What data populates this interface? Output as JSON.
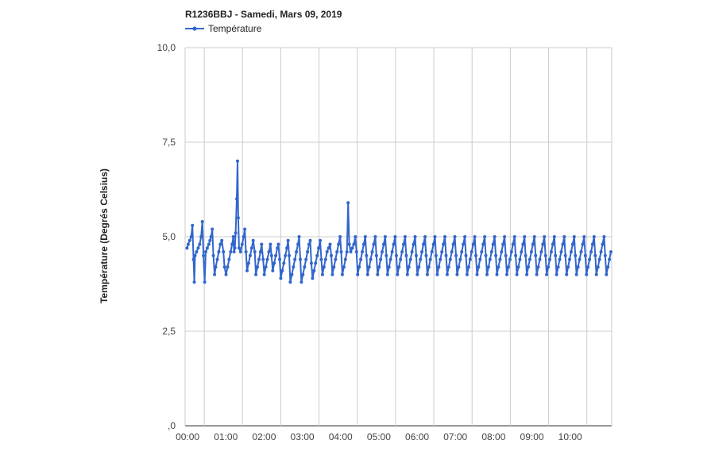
{
  "chart_data": {
    "type": "line",
    "title": "R1236BBJ - Samedi, Mars 09, 2019",
    "xlabel": "",
    "ylabel": "Température (Degrés Celsius)",
    "ylim": [
      0,
      10
    ],
    "y_ticks": [
      ",0",
      "2,5",
      "5,0",
      "7,5",
      "10,0"
    ],
    "y_tick_values": [
      0,
      2.5,
      5,
      7.5,
      10
    ],
    "x_ticks": [
      "00:00",
      "01:00",
      "02:00",
      "03:00",
      "04:00",
      "05:00",
      "06:00",
      "07:00",
      "08:00",
      "09:00",
      "10:00"
    ],
    "x_tick_values": [
      0,
      1,
      2,
      3,
      4,
      5,
      6,
      7,
      8,
      9,
      10
    ],
    "xlim_hours": [
      -0.5,
      10.65
    ],
    "grid": true,
    "legend_position": "top-left",
    "series": [
      {
        "name": "Température",
        "color": "#3366cc",
        "points": [
          [
            -0.45,
            4.7
          ],
          [
            -0.42,
            4.8
          ],
          [
            -0.38,
            4.9
          ],
          [
            -0.34,
            5.0
          ],
          [
            -0.31,
            5.3
          ],
          [
            -0.28,
            4.4
          ],
          [
            -0.26,
            3.8
          ],
          [
            -0.24,
            4.5
          ],
          [
            -0.2,
            4.6
          ],
          [
            -0.16,
            4.7
          ],
          [
            -0.12,
            4.8
          ],
          [
            -0.08,
            5.0
          ],
          [
            -0.05,
            5.4
          ],
          [
            -0.02,
            4.5
          ],
          [
            0.01,
            3.8
          ],
          [
            0.04,
            4.6
          ],
          [
            0.08,
            4.7
          ],
          [
            0.12,
            4.8
          ],
          [
            0.15,
            4.9
          ],
          [
            0.18,
            5.0
          ],
          [
            0.21,
            5.2
          ],
          [
            0.24,
            4.5
          ],
          [
            0.27,
            4.0
          ],
          [
            0.3,
            4.2
          ],
          [
            0.34,
            4.4
          ],
          [
            0.38,
            4.6
          ],
          [
            0.42,
            4.8
          ],
          [
            0.46,
            4.9
          ],
          [
            0.5,
            4.6
          ],
          [
            0.53,
            4.2
          ],
          [
            0.57,
            4.0
          ],
          [
            0.61,
            4.2
          ],
          [
            0.65,
            4.4
          ],
          [
            0.69,
            4.6
          ],
          [
            0.73,
            4.8
          ],
          [
            0.76,
            5.0
          ],
          [
            0.78,
            4.6
          ],
          [
            0.8,
            4.7
          ],
          [
            0.82,
            5.1
          ],
          [
            0.85,
            6.0
          ],
          [
            0.87,
            7.0
          ],
          [
            0.89,
            5.5
          ],
          [
            0.91,
            4.7
          ],
          [
            0.95,
            4.6
          ],
          [
            0.99,
            4.8
          ],
          [
            1.03,
            5.0
          ],
          [
            1.06,
            5.2
          ],
          [
            1.09,
            4.6
          ],
          [
            1.12,
            4.1
          ],
          [
            1.16,
            4.3
          ],
          [
            1.2,
            4.5
          ],
          [
            1.24,
            4.7
          ],
          [
            1.28,
            4.9
          ],
          [
            1.32,
            4.6
          ],
          [
            1.35,
            4.0
          ],
          [
            1.39,
            4.2
          ],
          [
            1.43,
            4.4
          ],
          [
            1.47,
            4.6
          ],
          [
            1.5,
            4.8
          ],
          [
            1.54,
            4.4
          ],
          [
            1.57,
            4.0
          ],
          [
            1.61,
            4.2
          ],
          [
            1.65,
            4.4
          ],
          [
            1.69,
            4.6
          ],
          [
            1.73,
            4.8
          ],
          [
            1.76,
            4.5
          ],
          [
            1.79,
            4.1
          ],
          [
            1.83,
            4.3
          ],
          [
            1.87,
            4.5
          ],
          [
            1.91,
            4.7
          ],
          [
            1.94,
            4.8
          ],
          [
            1.97,
            4.4
          ],
          [
            2.0,
            3.9
          ],
          [
            2.04,
            4.1
          ],
          [
            2.08,
            4.3
          ],
          [
            2.12,
            4.5
          ],
          [
            2.16,
            4.7
          ],
          [
            2.19,
            4.9
          ],
          [
            2.22,
            4.5
          ],
          [
            2.25,
            3.8
          ],
          [
            2.29,
            4.0
          ],
          [
            2.33,
            4.2
          ],
          [
            2.37,
            4.4
          ],
          [
            2.41,
            4.6
          ],
          [
            2.45,
            4.8
          ],
          [
            2.48,
            5.0
          ],
          [
            2.51,
            4.4
          ],
          [
            2.54,
            3.8
          ],
          [
            2.58,
            4.0
          ],
          [
            2.62,
            4.2
          ],
          [
            2.66,
            4.4
          ],
          [
            2.7,
            4.6
          ],
          [
            2.74,
            4.8
          ],
          [
            2.77,
            4.9
          ],
          [
            2.8,
            4.3
          ],
          [
            2.83,
            3.9
          ],
          [
            2.87,
            4.1
          ],
          [
            2.91,
            4.3
          ],
          [
            2.95,
            4.5
          ],
          [
            2.99,
            4.7
          ],
          [
            3.03,
            4.9
          ],
          [
            3.06,
            4.4
          ],
          [
            3.09,
            4.0
          ],
          [
            3.13,
            4.2
          ],
          [
            3.17,
            4.4
          ],
          [
            3.21,
            4.6
          ],
          [
            3.25,
            4.7
          ],
          [
            3.29,
            4.8
          ],
          [
            3.32,
            4.5
          ],
          [
            3.35,
            4.0
          ],
          [
            3.39,
            4.2
          ],
          [
            3.43,
            4.4
          ],
          [
            3.47,
            4.6
          ],
          [
            3.51,
            4.8
          ],
          [
            3.55,
            5.0
          ],
          [
            3.58,
            4.6
          ],
          [
            3.61,
            4.0
          ],
          [
            3.65,
            4.2
          ],
          [
            3.69,
            4.4
          ],
          [
            3.73,
            4.6
          ],
          [
            3.76,
            5.9
          ],
          [
            3.79,
            4.8
          ],
          [
            3.83,
            4.6
          ],
          [
            3.87,
            4.7
          ],
          [
            3.91,
            4.8
          ],
          [
            3.95,
            5.0
          ],
          [
            3.98,
            4.6
          ],
          [
            4.01,
            4.0
          ],
          [
            4.05,
            4.2
          ],
          [
            4.09,
            4.4
          ],
          [
            4.13,
            4.6
          ],
          [
            4.17,
            4.8
          ],
          [
            4.21,
            5.0
          ],
          [
            4.24,
            4.5
          ],
          [
            4.27,
            4.0
          ],
          [
            4.31,
            4.2
          ],
          [
            4.35,
            4.4
          ],
          [
            4.39,
            4.6
          ],
          [
            4.43,
            4.8
          ],
          [
            4.47,
            5.0
          ],
          [
            4.5,
            4.5
          ],
          [
            4.53,
            4.0
          ],
          [
            4.57,
            4.2
          ],
          [
            4.61,
            4.4
          ],
          [
            4.65,
            4.6
          ],
          [
            4.69,
            4.8
          ],
          [
            4.73,
            5.0
          ],
          [
            4.76,
            4.5
          ],
          [
            4.79,
            4.0
          ],
          [
            4.83,
            4.2
          ],
          [
            4.87,
            4.4
          ],
          [
            4.91,
            4.6
          ],
          [
            4.95,
            4.8
          ],
          [
            4.99,
            5.0
          ],
          [
            5.02,
            4.5
          ],
          [
            5.05,
            4.0
          ],
          [
            5.09,
            4.2
          ],
          [
            5.13,
            4.4
          ],
          [
            5.17,
            4.6
          ],
          [
            5.21,
            4.8
          ],
          [
            5.25,
            5.0
          ],
          [
            5.28,
            4.5
          ],
          [
            5.31,
            4.0
          ],
          [
            5.35,
            4.2
          ],
          [
            5.39,
            4.4
          ],
          [
            5.43,
            4.6
          ],
          [
            5.47,
            4.8
          ],
          [
            5.51,
            5.0
          ],
          [
            5.54,
            4.5
          ],
          [
            5.57,
            4.0
          ],
          [
            5.61,
            4.2
          ],
          [
            5.65,
            4.4
          ],
          [
            5.69,
            4.6
          ],
          [
            5.73,
            4.8
          ],
          [
            5.77,
            5.0
          ],
          [
            5.8,
            4.5
          ],
          [
            5.83,
            4.0
          ],
          [
            5.87,
            4.2
          ],
          [
            5.91,
            4.4
          ],
          [
            5.95,
            4.6
          ],
          [
            5.99,
            4.8
          ],
          [
            6.03,
            5.0
          ],
          [
            6.06,
            4.5
          ],
          [
            6.09,
            4.0
          ],
          [
            6.13,
            4.2
          ],
          [
            6.17,
            4.4
          ],
          [
            6.21,
            4.6
          ],
          [
            6.25,
            4.8
          ],
          [
            6.29,
            5.0
          ],
          [
            6.32,
            4.5
          ],
          [
            6.35,
            4.0
          ],
          [
            6.39,
            4.2
          ],
          [
            6.43,
            4.4
          ],
          [
            6.47,
            4.6
          ],
          [
            6.51,
            4.8
          ],
          [
            6.55,
            5.0
          ],
          [
            6.58,
            4.5
          ],
          [
            6.61,
            4.0
          ],
          [
            6.65,
            4.2
          ],
          [
            6.69,
            4.4
          ],
          [
            6.73,
            4.6
          ],
          [
            6.77,
            4.8
          ],
          [
            6.81,
            5.0
          ],
          [
            6.84,
            4.5
          ],
          [
            6.87,
            4.0
          ],
          [
            6.91,
            4.2
          ],
          [
            6.95,
            4.4
          ],
          [
            6.99,
            4.6
          ],
          [
            7.03,
            4.8
          ],
          [
            7.07,
            5.0
          ],
          [
            7.1,
            4.5
          ],
          [
            7.13,
            4.0
          ],
          [
            7.17,
            4.2
          ],
          [
            7.21,
            4.4
          ],
          [
            7.25,
            4.6
          ],
          [
            7.29,
            4.8
          ],
          [
            7.33,
            5.0
          ],
          [
            7.36,
            4.5
          ],
          [
            7.39,
            4.0
          ],
          [
            7.43,
            4.2
          ],
          [
            7.47,
            4.4
          ],
          [
            7.51,
            4.6
          ],
          [
            7.55,
            4.8
          ],
          [
            7.59,
            5.0
          ],
          [
            7.62,
            4.5
          ],
          [
            7.65,
            4.0
          ],
          [
            7.69,
            4.2
          ],
          [
            7.73,
            4.4
          ],
          [
            7.77,
            4.6
          ],
          [
            7.81,
            4.8
          ],
          [
            7.85,
            5.0
          ],
          [
            7.88,
            4.5
          ],
          [
            7.91,
            4.0
          ],
          [
            7.95,
            4.2
          ],
          [
            7.99,
            4.4
          ],
          [
            8.03,
            4.6
          ],
          [
            8.07,
            4.8
          ],
          [
            8.11,
            5.0
          ],
          [
            8.14,
            4.5
          ],
          [
            8.17,
            4.0
          ],
          [
            8.21,
            4.2
          ],
          [
            8.25,
            4.4
          ],
          [
            8.29,
            4.6
          ],
          [
            8.33,
            4.8
          ],
          [
            8.37,
            5.0
          ],
          [
            8.4,
            4.5
          ],
          [
            8.43,
            4.0
          ],
          [
            8.47,
            4.2
          ],
          [
            8.51,
            4.4
          ],
          [
            8.55,
            4.6
          ],
          [
            8.59,
            4.8
          ],
          [
            8.63,
            5.0
          ],
          [
            8.66,
            4.5
          ],
          [
            8.69,
            4.0
          ],
          [
            8.73,
            4.2
          ],
          [
            8.77,
            4.4
          ],
          [
            8.81,
            4.6
          ],
          [
            8.85,
            4.8
          ],
          [
            8.89,
            5.0
          ],
          [
            8.92,
            4.5
          ],
          [
            8.95,
            4.0
          ],
          [
            8.99,
            4.2
          ],
          [
            9.03,
            4.4
          ],
          [
            9.07,
            4.6
          ],
          [
            9.11,
            4.8
          ],
          [
            9.15,
            5.0
          ],
          [
            9.18,
            4.5
          ],
          [
            9.21,
            4.0
          ],
          [
            9.25,
            4.2
          ],
          [
            9.29,
            4.4
          ],
          [
            9.33,
            4.6
          ],
          [
            9.37,
            4.8
          ],
          [
            9.41,
            5.0
          ],
          [
            9.44,
            4.5
          ],
          [
            9.47,
            4.0
          ],
          [
            9.51,
            4.2
          ],
          [
            9.55,
            4.4
          ],
          [
            9.59,
            4.6
          ],
          [
            9.63,
            4.8
          ],
          [
            9.67,
            5.0
          ],
          [
            9.7,
            4.5
          ],
          [
            9.73,
            4.0
          ],
          [
            9.77,
            4.2
          ],
          [
            9.81,
            4.4
          ],
          [
            9.85,
            4.6
          ],
          [
            9.89,
            4.8
          ],
          [
            9.93,
            5.0
          ],
          [
            9.96,
            4.5
          ],
          [
            9.99,
            4.0
          ],
          [
            10.03,
            4.2
          ],
          [
            10.07,
            4.4
          ],
          [
            10.11,
            4.6
          ],
          [
            10.15,
            4.8
          ],
          [
            10.19,
            5.0
          ],
          [
            10.22,
            4.5
          ],
          [
            10.25,
            4.0
          ],
          [
            10.29,
            4.2
          ],
          [
            10.33,
            4.4
          ],
          [
            10.37,
            4.6
          ],
          [
            10.41,
            4.8
          ],
          [
            10.45,
            5.0
          ],
          [
            10.48,
            4.5
          ],
          [
            10.51,
            4.0
          ],
          [
            10.55,
            4.2
          ],
          [
            10.59,
            4.4
          ],
          [
            10.63,
            4.6
          ]
        ]
      }
    ]
  }
}
